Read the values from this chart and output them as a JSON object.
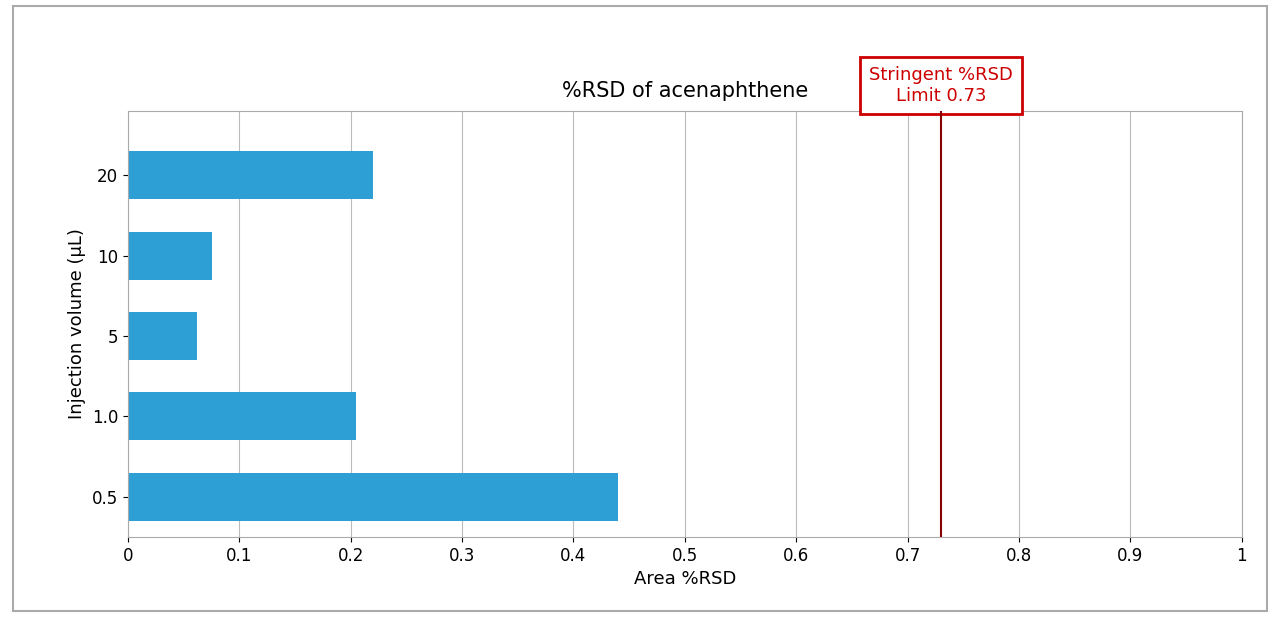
{
  "categories": [
    "0.5",
    "1.0",
    "5",
    "10",
    "20"
  ],
  "values": [
    0.44,
    0.205,
    0.062,
    0.075,
    0.22
  ],
  "bar_color": "#2e9fd4",
  "title": "%RSD of acenaphthene",
  "xlabel": "Area %RSD",
  "ylabel": "Injection volume (μL)",
  "xlim": [
    0,
    1.0
  ],
  "xticks": [
    0,
    0.1,
    0.2,
    0.3,
    0.4,
    0.5,
    0.6,
    0.7,
    0.8,
    0.9,
    1
  ],
  "xtick_labels": [
    "0",
    "0.1",
    "0.2",
    "0.3",
    "0.4",
    "0.5",
    "0.6",
    "0.7",
    "0.8",
    "0.9",
    "1"
  ],
  "vline_x": 0.73,
  "vline_color": "#8b0000",
  "annotation_text": "Stringent %RSD\nLimit 0.73",
  "annotation_color": "#cc0000",
  "annotation_box_edgecolor": "#cc0000",
  "background_color": "#ffffff",
  "outer_border_color": "#aaaaaa",
  "title_fontsize": 15,
  "label_fontsize": 13,
  "tick_fontsize": 12,
  "annotation_fontsize": 13,
  "grid_color": "#bbbbbb",
  "bar_height": 0.6
}
